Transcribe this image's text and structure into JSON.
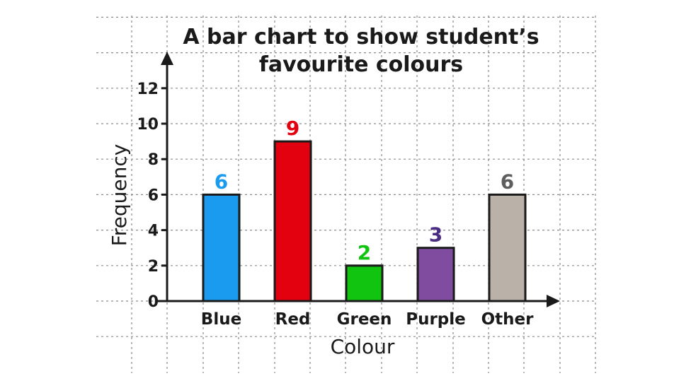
{
  "chart_data": {
    "type": "bar",
    "title": [
      "A bar chart to show student’s",
      "favourite colours"
    ],
    "xlabel": "Colour",
    "ylabel": "Frequency",
    "categories": [
      "Blue",
      "Red",
      "Green",
      "Purple",
      "Other"
    ],
    "values": [
      6,
      9,
      2,
      3,
      6
    ],
    "data_labels": [
      "6",
      "9",
      "2",
      "3",
      "6"
    ],
    "bar_colors": [
      "#1b9bf0",
      "#e3000f",
      "#10c410",
      "#7f4ca0",
      "#bab1a8"
    ],
    "label_colors": [
      "#1b9bf0",
      "#e3000f",
      "#10c410",
      "#4a2c82",
      "#5e5e5e"
    ],
    "yticks": [
      0,
      2,
      4,
      6,
      8,
      10,
      12
    ],
    "ylim": [
      0,
      12
    ],
    "grid": true
  }
}
